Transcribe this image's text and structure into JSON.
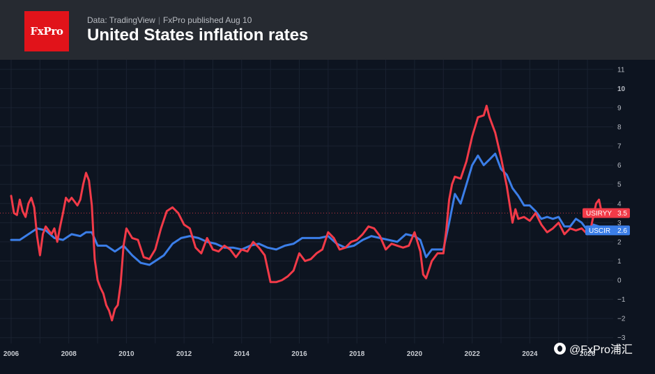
{
  "header": {
    "logo_text": "FxPro",
    "source_data": "Data: TradingView",
    "source_publisher": "FxPro published Aug 10",
    "title": "United States inflation rates"
  },
  "watermark": {
    "icon": "weibo-icon",
    "text": "@FxPro浦汇"
  },
  "colors": {
    "usiryy": "#f23a48",
    "uscir": "#3b7ee8",
    "background": "#0d1420",
    "header": "#262a31",
    "logo": "#e1131a"
  },
  "chart_data": {
    "type": "line",
    "title": "United States inflation rates",
    "xlabel": "",
    "ylabel": "",
    "xlim": [
      2006.0,
      2026.7
    ],
    "ylim": [
      -3.3,
      11.5
    ],
    "x_ticks": [
      "2006",
      "2008",
      "2010",
      "2012",
      "2014",
      "2016",
      "2018",
      "2020",
      "2022",
      "2024",
      "2026"
    ],
    "y_ticks": [
      11,
      10,
      9,
      8,
      7,
      6,
      5,
      4,
      3,
      2,
      1,
      0,
      -1,
      -2,
      -3
    ],
    "grid": true,
    "legend": "right-axis value tags",
    "series": [
      {
        "name": "USIRYY",
        "last_value_label": "3.5",
        "last_value": 3.5,
        "x": [
          2006.0,
          2006.1,
          2006.2,
          2006.3,
          2006.4,
          2006.5,
          2006.6,
          2006.7,
          2006.8,
          2006.9,
          2007.0,
          2007.1,
          2007.2,
          2007.3,
          2007.4,
          2007.5,
          2007.6,
          2007.7,
          2007.8,
          2007.9,
          2008.0,
          2008.1,
          2008.2,
          2008.3,
          2008.4,
          2008.5,
          2008.6,
          2008.7,
          2008.8,
          2008.9,
          2009.0,
          2009.1,
          2009.2,
          2009.3,
          2009.4,
          2009.5,
          2009.6,
          2009.7,
          2009.8,
          2009.9,
          2010.0,
          2010.2,
          2010.4,
          2010.6,
          2010.8,
          2011.0,
          2011.2,
          2011.4,
          2011.6,
          2011.8,
          2012.0,
          2012.2,
          2012.4,
          2012.6,
          2012.8,
          2013.0,
          2013.2,
          2013.4,
          2013.6,
          2013.8,
          2014.0,
          2014.2,
          2014.4,
          2014.6,
          2014.8,
          2015.0,
          2015.2,
          2015.4,
          2015.6,
          2015.8,
          2016.0,
          2016.2,
          2016.4,
          2016.6,
          2016.8,
          2017.0,
          2017.2,
          2017.4,
          2017.6,
          2017.8,
          2018.0,
          2018.2,
          2018.4,
          2018.6,
          2018.8,
          2019.0,
          2019.2,
          2019.4,
          2019.6,
          2019.8,
          2020.0,
          2020.2,
          2020.3,
          2020.4,
          2020.6,
          2020.8,
          2021.0,
          2021.1,
          2021.2,
          2021.3,
          2021.4,
          2021.6,
          2021.8,
          2022.0,
          2022.2,
          2022.4,
          2022.5,
          2022.6,
          2022.8,
          2023.0,
          2023.2,
          2023.4,
          2023.5,
          2023.6,
          2023.8,
          2024.0,
          2024.2,
          2024.4,
          2024.6,
          2024.8,
          2025.0,
          2025.2,
          2025.4,
          2025.6,
          2025.8,
          2026.0,
          2026.1,
          2026.2,
          2026.3,
          2026.4,
          2026.5
        ],
        "values": [
          4.4,
          3.5,
          3.4,
          4.2,
          3.6,
          3.3,
          4.0,
          4.3,
          3.8,
          2.3,
          1.3,
          2.4,
          2.8,
          2.6,
          2.4,
          2.7,
          2.0,
          2.8,
          3.5,
          4.3,
          4.1,
          4.3,
          4.1,
          3.9,
          4.2,
          5.0,
          5.6,
          5.2,
          3.9,
          1.1,
          0.0,
          -0.4,
          -0.7,
          -1.3,
          -1.6,
          -2.1,
          -1.5,
          -1.3,
          -0.2,
          1.8,
          2.7,
          2.2,
          2.1,
          1.2,
          1.1,
          1.6,
          2.7,
          3.6,
          3.8,
          3.5,
          2.9,
          2.7,
          1.7,
          1.4,
          2.2,
          1.6,
          1.5,
          1.8,
          1.6,
          1.2,
          1.6,
          1.5,
          2.0,
          1.7,
          1.3,
          -0.1,
          -0.1,
          0.0,
          0.2,
          0.5,
          1.4,
          1.0,
          1.1,
          1.4,
          1.6,
          2.5,
          2.2,
          1.6,
          1.7,
          2.0,
          2.1,
          2.4,
          2.8,
          2.7,
          2.3,
          1.6,
          1.9,
          1.8,
          1.7,
          1.8,
          2.5,
          1.5,
          0.3,
          0.1,
          1.0,
          1.4,
          1.4,
          2.6,
          4.2,
          5.0,
          5.4,
          5.3,
          6.2,
          7.5,
          8.5,
          8.6,
          9.1,
          8.5,
          7.7,
          6.4,
          4.9,
          3.0,
          3.7,
          3.2,
          3.3,
          3.1,
          3.5,
          2.9,
          2.5,
          2.7,
          3.0,
          2.4,
          2.7,
          2.6,
          2.7,
          2.4,
          2.6,
          3.3,
          4.0,
          4.2,
          3.5
        ]
      },
      {
        "name": "USCIR",
        "last_value_label": "2.6",
        "last_value": 2.6,
        "x": [
          2006.0,
          2006.3,
          2006.6,
          2006.9,
          2007.2,
          2007.5,
          2007.8,
          2008.1,
          2008.4,
          2008.6,
          2008.8,
          2009.0,
          2009.3,
          2009.6,
          2009.9,
          2010.2,
          2010.5,
          2010.8,
          2011.0,
          2011.3,
          2011.6,
          2011.9,
          2012.2,
          2012.5,
          2012.8,
          2013.1,
          2013.4,
          2013.7,
          2014.0,
          2014.3,
          2014.6,
          2014.9,
          2015.2,
          2015.5,
          2015.8,
          2016.1,
          2016.4,
          2016.7,
          2017.0,
          2017.3,
          2017.6,
          2017.9,
          2018.2,
          2018.5,
          2018.8,
          2019.1,
          2019.4,
          2019.7,
          2020.0,
          2020.2,
          2020.4,
          2020.6,
          2020.8,
          2021.0,
          2021.2,
          2021.4,
          2021.6,
          2021.8,
          2022.0,
          2022.2,
          2022.4,
          2022.6,
          2022.8,
          2023.0,
          2023.2,
          2023.4,
          2023.6,
          2023.8,
          2024.0,
          2024.2,
          2024.4,
          2024.6,
          2024.8,
          2025.0,
          2025.2,
          2025.4,
          2025.6,
          2025.8,
          2026.0,
          2026.2,
          2026.4,
          2026.5
        ],
        "values": [
          2.1,
          2.1,
          2.4,
          2.7,
          2.6,
          2.2,
          2.1,
          2.4,
          2.3,
          2.5,
          2.5,
          1.8,
          1.8,
          1.5,
          1.8,
          1.3,
          0.9,
          0.8,
          1.0,
          1.3,
          1.9,
          2.2,
          2.3,
          2.2,
          2.0,
          1.9,
          1.7,
          1.7,
          1.6,
          1.8,
          1.9,
          1.7,
          1.6,
          1.8,
          1.9,
          2.2,
          2.2,
          2.2,
          2.3,
          1.9,
          1.7,
          1.8,
          2.1,
          2.3,
          2.2,
          2.1,
          2.0,
          2.4,
          2.3,
          2.1,
          1.2,
          1.6,
          1.6,
          1.6,
          3.0,
          4.5,
          4.0,
          5.0,
          6.0,
          6.5,
          6.0,
          6.3,
          6.6,
          5.8,
          5.5,
          4.8,
          4.4,
          3.9,
          3.9,
          3.6,
          3.2,
          3.3,
          3.2,
          3.3,
          2.8,
          2.8,
          3.2,
          3.0,
          2.6,
          2.9,
          2.8,
          2.6
        ]
      }
    ]
  }
}
